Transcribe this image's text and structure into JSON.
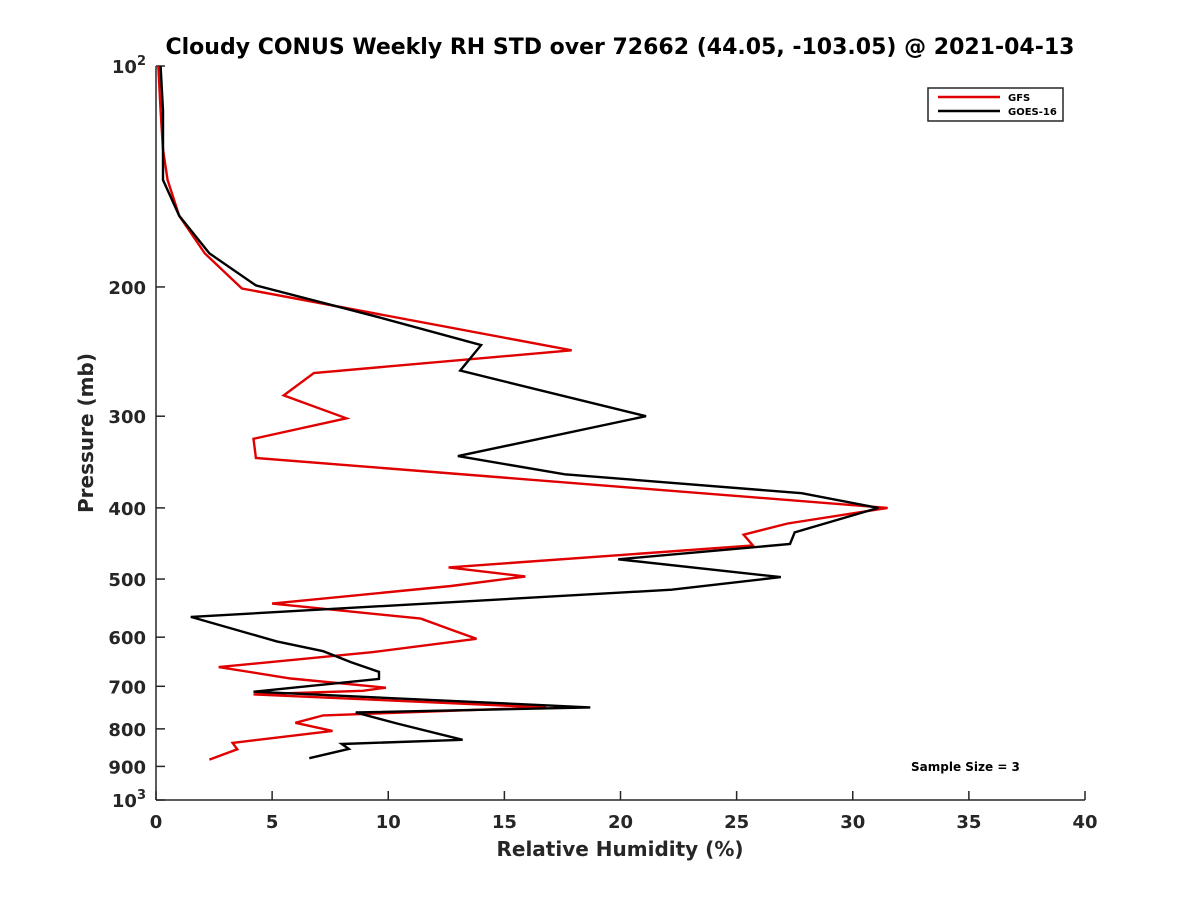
{
  "chart_data": {
    "type": "line",
    "title": "Cloudy CONUS Weekly RH STD over 72662 (44.05, -103.05) @ 2021-04-13",
    "xlabel": "Relative Humidity (%)",
    "ylabel": "Pressure (mb)",
    "xlim": [
      0,
      40
    ],
    "ylim": [
      100,
      1000
    ],
    "y_scale": "log",
    "y_reversed": true,
    "x_ticks": [
      "0",
      "5",
      "10",
      "15",
      "20",
      "25",
      "30",
      "35",
      "40"
    ],
    "y_ticks": [
      {
        "value": 100,
        "base": "10",
        "exp": "2"
      },
      {
        "value": 200,
        "label": "200"
      },
      {
        "value": 300,
        "label": "300"
      },
      {
        "value": 400,
        "label": "400"
      },
      {
        "value": 500,
        "label": "500"
      },
      {
        "value": 600,
        "label": "600"
      },
      {
        "value": 700,
        "label": "700"
      },
      {
        "value": 800,
        "label": "800"
      },
      {
        "value": 900,
        "label": "900"
      },
      {
        "value": 1000,
        "base": "10",
        "exp": "3"
      }
    ],
    "legend_position": "top-right",
    "annotation": "Sample Size = 3",
    "series": [
      {
        "name": "GFS",
        "color": "#e00000",
        "points": [
          [
            0.1,
            100
          ],
          [
            0.2,
            115
          ],
          [
            0.3,
            130
          ],
          [
            0.5,
            143
          ],
          [
            1.0,
            160
          ],
          [
            2.1,
            180
          ],
          [
            3.7,
            201
          ],
          [
            17.9,
            244
          ],
          [
            6.8,
            262
          ],
          [
            5.5,
            281
          ],
          [
            8.2,
            302
          ],
          [
            4.2,
            322
          ],
          [
            4.3,
            342
          ],
          [
            31.5,
            400
          ],
          [
            27.2,
            420
          ],
          [
            25.3,
            435
          ],
          [
            25.7,
            450
          ],
          [
            12.6,
            482
          ],
          [
            15.9,
            496
          ],
          [
            12.7,
            511
          ],
          [
            5.0,
            540
          ],
          [
            11.4,
            566
          ],
          [
            12.7,
            586
          ],
          [
            13.8,
            603
          ],
          [
            9.3,
            629
          ],
          [
            2.7,
            659
          ],
          [
            5.8,
            683
          ],
          [
            9.9,
            703
          ],
          [
            8.9,
            710
          ],
          [
            4.2,
            718
          ],
          [
            16.8,
            748
          ],
          [
            7.2,
            767
          ],
          [
            6.0,
            785
          ],
          [
            7.6,
            805
          ],
          [
            3.3,
            836
          ],
          [
            3.5,
            853
          ],
          [
            2.3,
            881
          ]
        ]
      },
      {
        "name": "GOES-16",
        "color": "#000000",
        "points": [
          [
            0.2,
            100
          ],
          [
            0.3,
            115
          ],
          [
            0.3,
            130
          ],
          [
            0.3,
            143
          ],
          [
            1.0,
            160
          ],
          [
            2.3,
            180
          ],
          [
            4.3,
            199
          ],
          [
            9.6,
            220
          ],
          [
            14.0,
            240
          ],
          [
            13.1,
            260
          ],
          [
            21.1,
            300
          ],
          [
            13.0,
            340
          ],
          [
            17.6,
            360
          ],
          [
            27.8,
            382
          ],
          [
            31.1,
            400
          ],
          [
            27.5,
            432
          ],
          [
            27.3,
            448
          ],
          [
            19.9,
            470
          ],
          [
            26.9,
            497
          ],
          [
            22.2,
            517
          ],
          [
            1.5,
            563
          ],
          [
            5.2,
            608
          ],
          [
            7.2,
            627
          ],
          [
            8.4,
            649
          ],
          [
            9.6,
            669
          ],
          [
            9.6,
            684
          ],
          [
            4.2,
            712
          ],
          [
            18.7,
            748
          ],
          [
            8.6,
            760
          ],
          [
            10.4,
            787
          ],
          [
            13.2,
            828
          ],
          [
            8.0,
            839
          ],
          [
            8.3,
            852
          ],
          [
            6.6,
            877
          ]
        ]
      }
    ]
  }
}
